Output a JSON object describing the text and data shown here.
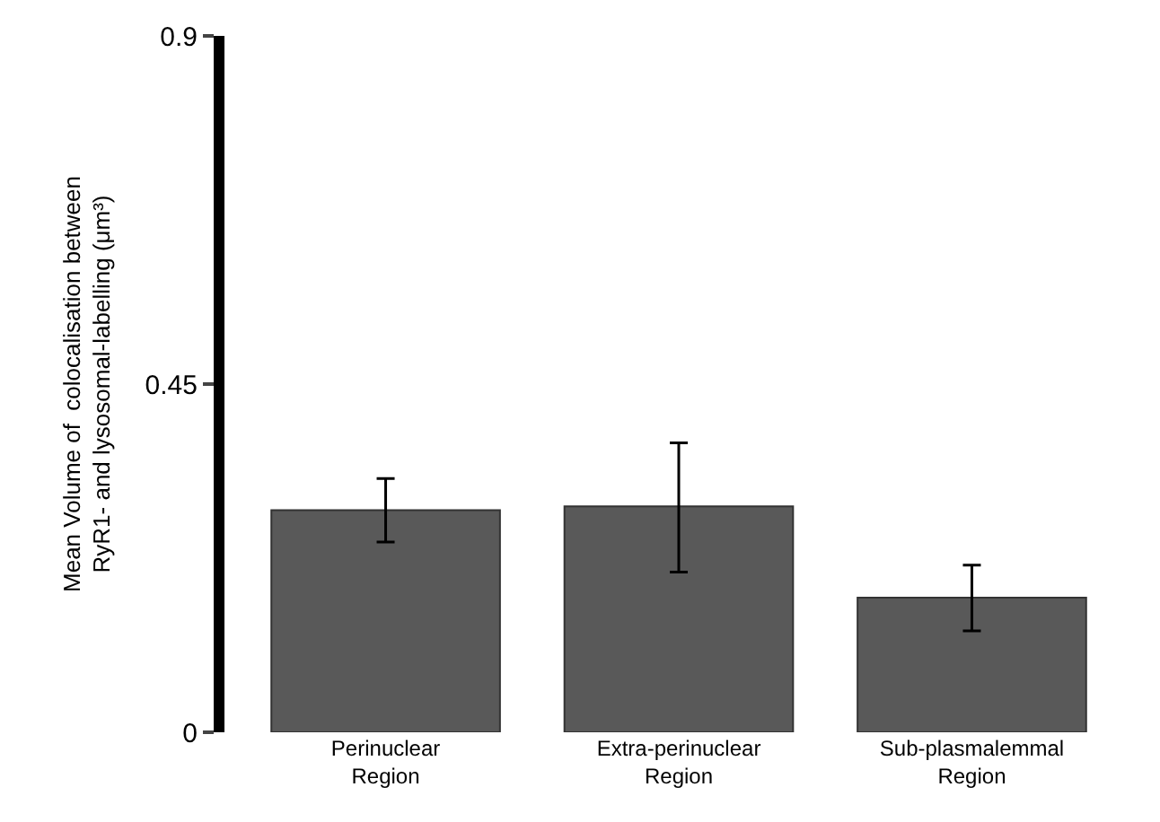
{
  "chart_data": {
    "type": "bar",
    "ylabel": "Mean Volume of  colocalisation between\nRyR1- and lysosomal-labelling (μm³)",
    "categories": [
      "Perinuclear\nRegion",
      "Extra-perinuclear\nRegion",
      "Sub-plasmalemmal\nRegion"
    ],
    "values": [
      0.287,
      0.292,
      0.174
    ],
    "errors": [
      [
        0.246,
        0.328
      ],
      [
        0.207,
        0.374
      ],
      [
        0.131,
        0.216
      ]
    ],
    "color": "#595959",
    "ylim": [
      0,
      0.9
    ],
    "yticks": [
      0,
      0.45,
      0.9
    ]
  }
}
